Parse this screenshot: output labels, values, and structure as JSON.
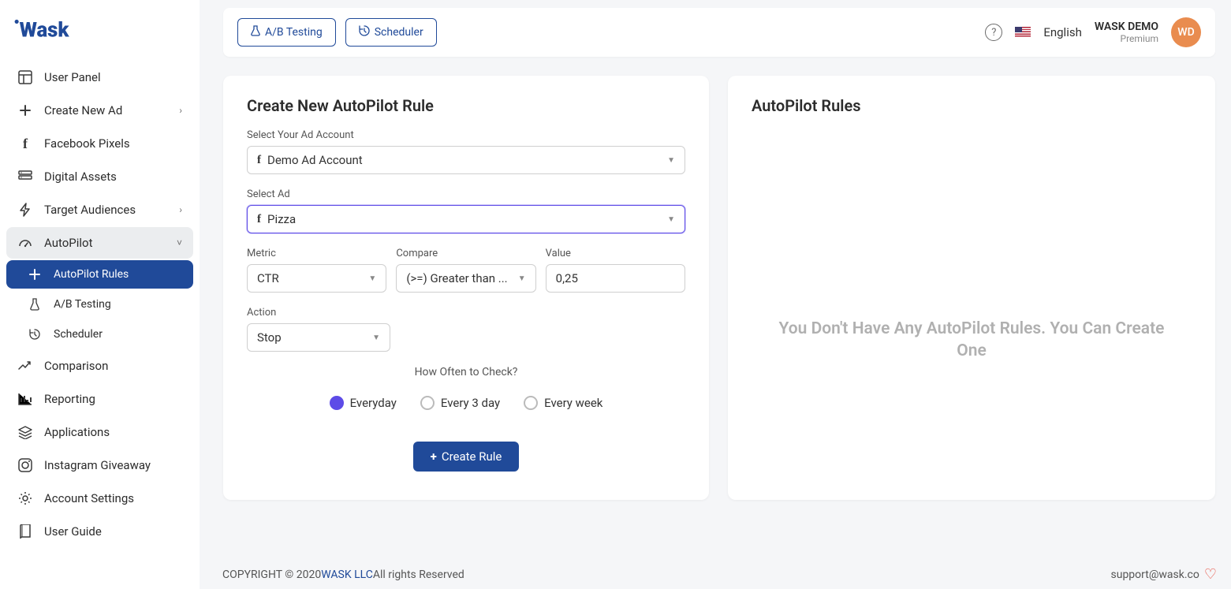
{
  "brand": "WASK",
  "colors": {
    "primary": "#204a99",
    "accent": "#5d4be7",
    "avatar": "#e98c4f"
  },
  "sidebar": {
    "items": [
      {
        "label": "User Panel",
        "icon": "dashboard",
        "interact": true
      },
      {
        "label": "Create New Ad",
        "icon": "plus",
        "interact": true,
        "chevron": true
      },
      {
        "label": "Facebook Pixels",
        "icon": "facebook",
        "interact": true
      },
      {
        "label": "Digital Assets",
        "icon": "assets",
        "interact": true
      },
      {
        "label": "Target Audiences",
        "icon": "bolt",
        "interact": true,
        "chevron": true
      },
      {
        "label": "AutoPilot",
        "icon": "gauge",
        "interact": true,
        "chevron": true,
        "expanded": true
      },
      {
        "label": "AutoPilot Rules",
        "icon": "plus",
        "interact": true,
        "active": true
      },
      {
        "label": "A/B Testing",
        "icon": "flask",
        "interact": true
      },
      {
        "label": "Scheduler",
        "icon": "history",
        "interact": true
      },
      {
        "label": "Comparison",
        "icon": "trend",
        "interact": true
      },
      {
        "label": "Reporting",
        "icon": "chart",
        "interact": true
      },
      {
        "label": "Applications",
        "icon": "apps",
        "interact": true
      },
      {
        "label": "Instagram Giveaway",
        "icon": "instagram",
        "interact": true
      },
      {
        "label": "Account Settings",
        "icon": "gear",
        "interact": true
      },
      {
        "label": "User Guide",
        "icon": "book",
        "interact": true
      }
    ]
  },
  "topbar": {
    "ab_testing": "A/B Testing",
    "scheduler": "Scheduler",
    "language": "English",
    "user_name": "WASK DEMO",
    "user_tier": "Premium",
    "avatar_initials": "WD"
  },
  "form": {
    "title": "Create New AutoPilot Rule",
    "account_label": "Select Your Ad Account",
    "account_value": "Demo Ad Account",
    "ad_label": "Select Ad",
    "ad_value": "Pizza",
    "metric_label": "Metric",
    "metric_value": "CTR",
    "compare_label": "Compare",
    "compare_value": "(>=) Greater than ...",
    "value_label": "Value",
    "value_value": "0,25",
    "action_label": "Action",
    "action_value": "Stop",
    "frequency_label": "How Often to Check?",
    "freq_options": [
      "Everyday",
      "Every 3 day",
      "Every week"
    ],
    "freq_selected": 0,
    "create_btn": "Create Rule"
  },
  "rules_panel": {
    "title": "AutoPilot Rules",
    "empty": "You Don't Have Any AutoPilot Rules. You Can Create One"
  },
  "footer": {
    "copyright_prefix": "COPYRIGHT © 2020 ",
    "company": "WASK LLC",
    "copyright_suffix": " All rights Reserved",
    "support": "support@wask.co"
  }
}
